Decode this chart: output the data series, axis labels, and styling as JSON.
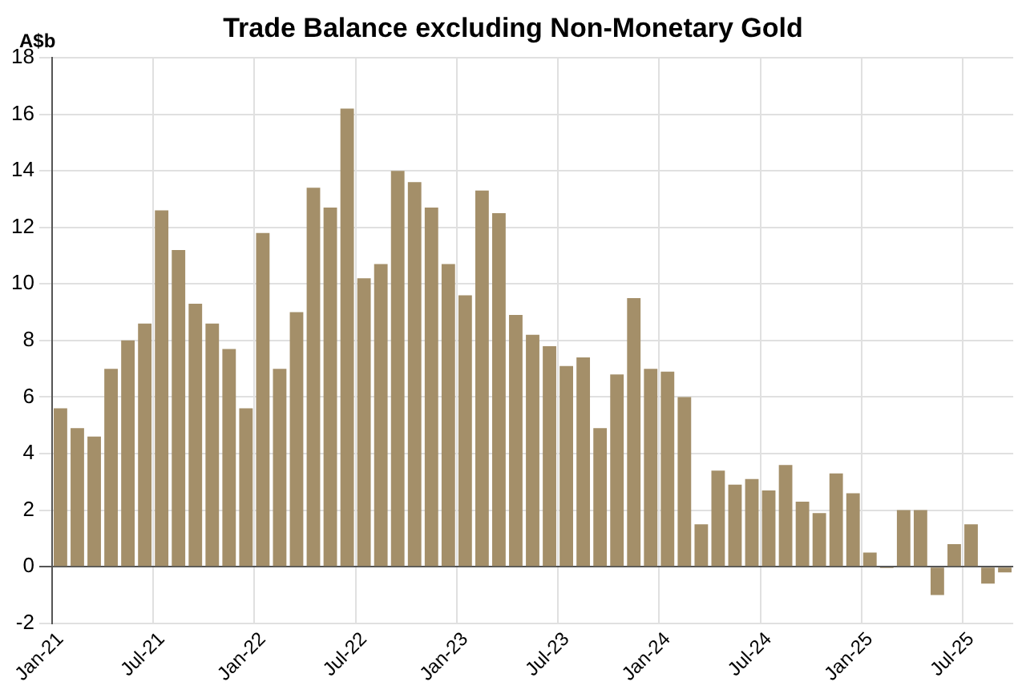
{
  "chart_data": {
    "type": "bar",
    "title": "Trade Balance excluding Non-Monetary Gold",
    "ylabel": "A$b",
    "categories": [
      "Jan-21",
      null,
      null,
      null,
      null,
      null,
      "Jul-21",
      null,
      null,
      null,
      null,
      null,
      "Jan-22",
      null,
      null,
      null,
      null,
      null,
      "Jul-22",
      null,
      null,
      null,
      null,
      null,
      "Jan-23",
      null,
      null,
      null,
      null,
      null,
      "Jul-23",
      null,
      null,
      null,
      null,
      null,
      "Jan-24",
      null,
      null,
      null,
      null,
      null,
      "Jul-24",
      null,
      null,
      null,
      null,
      null,
      "Jan-25",
      null,
      null,
      null,
      null,
      null,
      "Jul-25",
      null,
      null
    ],
    "values": [
      5.6,
      4.9,
      4.6,
      7.0,
      8.0,
      8.6,
      12.6,
      11.2,
      9.3,
      8.6,
      7.7,
      5.6,
      11.8,
      7.0,
      9.0,
      13.4,
      12.7,
      16.2,
      10.2,
      10.7,
      14.0,
      13.6,
      12.7,
      10.7,
      9.6,
      13.3,
      12.5,
      8.9,
      8.2,
      7.8,
      7.1,
      7.4,
      4.9,
      6.8,
      9.5,
      7.0,
      6.9,
      6.0,
      1.5,
      3.4,
      2.9,
      3.1,
      2.7,
      3.6,
      2.3,
      1.9,
      3.3,
      2.6,
      0.5,
      -0.05,
      2.0,
      2.0,
      -1.0,
      0.8,
      1.5,
      -0.6,
      -0.2
    ],
    "color": "#a48f69",
    "ylim": [
      -2,
      18
    ],
    "yticks": [
      -2,
      0,
      2,
      4,
      6,
      8,
      10,
      12,
      14,
      16,
      18
    ],
    "grid": true
  }
}
